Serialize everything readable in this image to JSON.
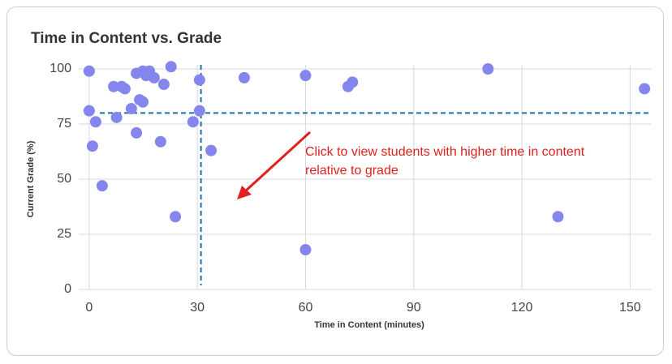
{
  "chart_data": {
    "type": "scatter",
    "title": "Time in Content vs. Grade",
    "x_label": "Time in Content (minutes)",
    "y_label": "Current Grade (%)",
    "annotation": "Click to view students with higher time in content relative to grade",
    "color": "#8585ee",
    "grid": true,
    "reference_color": "#1f6fa8",
    "x_reference": 31,
    "y_reference": 80,
    "xlim": [
      -2,
      156
    ],
    "xticks": [
      0,
      30,
      60,
      90,
      120,
      150
    ],
    "ylim": [
      0,
      100
    ],
    "yticks": [
      0,
      25,
      50,
      75,
      100
    ],
    "x": [
      0,
      0,
      1.8,
      0.9,
      3.6,
      6.8,
      9,
      9.9,
      11.7,
      7.6,
      13.1,
      14,
      14.9,
      14.9,
      15.8,
      16.7,
      18,
      13.1,
      19.8,
      20.7,
      22.7,
      23.9,
      28.8,
      30.6,
      30.6,
      33.8,
      43,
      60,
      60,
      71.8,
      73,
      110.6,
      130,
      154
    ],
    "values": [
      99,
      81,
      76,
      65,
      47,
      92,
      92,
      91,
      82,
      78,
      98,
      86,
      85,
      99,
      97,
      99,
      96,
      71,
      67,
      93,
      101,
      33,
      76,
      95,
      81,
      63,
      96,
      97,
      18,
      92,
      94,
      100,
      33,
      91
    ]
  }
}
